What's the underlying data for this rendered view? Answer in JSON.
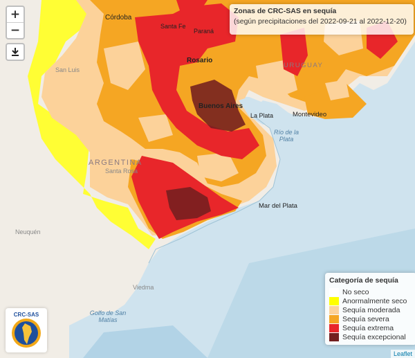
{
  "map": {
    "title": "Zonas de CRC-SAS en sequía",
    "subtitle": "(según precipitaciones del 2022-09-21 al 2022-12-20)",
    "attribution": "Leaflet",
    "zoom_in": "+",
    "zoom_out": "−",
    "download_icon": "download-icon",
    "legend": {
      "title": "Categoría de sequía",
      "items": [
        {
          "label": "No seco",
          "color": "#ffffff"
        },
        {
          "label": "Anormalmente seco",
          "color": "#ffff00"
        },
        {
          "label": "Sequía moderada",
          "color": "#fcd29a"
        },
        {
          "label": "Sequía severa",
          "color": "#f5a623"
        },
        {
          "label": "Sequía extrema",
          "color": "#e8262a"
        },
        {
          "label": "Sequía excepcional",
          "color": "#731f1f"
        }
      ]
    },
    "places": {
      "cordoba": "Córdoba",
      "santa_fe": "Santa Fe",
      "parana": "Paraná",
      "rosario": "Rosario",
      "san_luis": "San Luis",
      "buenos_aires": "Buenos Aires",
      "la_plata": "La Plata",
      "montevideo": "Montevideo",
      "uruguay": "URUGUAY",
      "argentina": "ARGENTINA",
      "santa_rosa": "Santa Rosa",
      "mar_del_plata": "Mar del Plata",
      "neuquen": "Neuquén",
      "viedma": "Viedma",
      "rio_de_la_plata": "Río de la Plata",
      "golfo_san_matias": "Golfo de San Matías"
    },
    "logo_text": "CRC-SAS"
  }
}
